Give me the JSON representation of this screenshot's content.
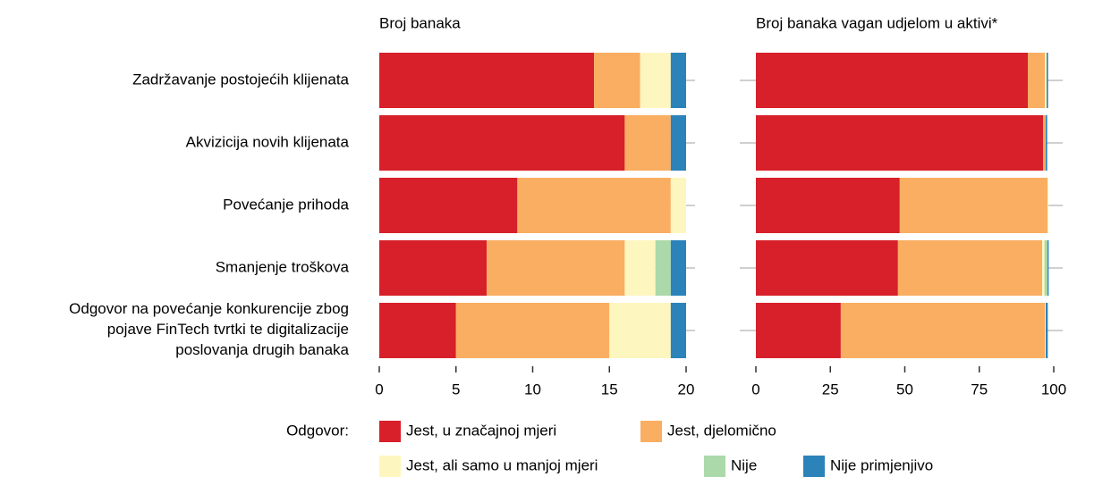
{
  "chart_data": [
    {
      "type": "bar",
      "orientation": "horizontal",
      "stacked": true,
      "title": "Broj banaka",
      "categories": [
        "Zadržavanje postojećih klijenata",
        "Akvizicija novih klijenata",
        "Povećanje prihoda",
        "Smanjenje troškova",
        "Odgovor na povećanje konkurencije zbog\npojave FinTech tvrtki te digitalizacije\nposlovanja drugih banaka"
      ],
      "legend_title": "Odgovor:",
      "series": [
        {
          "name": "Jest, u značajnoj mjeri",
          "color": "#d7202a",
          "values": [
            14,
            16,
            9,
            7,
            5
          ]
        },
        {
          "name": "Jest, djelomično",
          "color": "#f9ae61",
          "values": [
            3,
            3,
            10,
            9,
            10
          ]
        },
        {
          "name": "Jest, ali samo u manjoj mjeri",
          "color": "#fef6bf",
          "values": [
            2,
            0,
            1,
            2,
            4
          ]
        },
        {
          "name": "Nije",
          "color": "#abd9a9",
          "values": [
            0,
            0,
            0,
            1,
            0
          ]
        },
        {
          "name": "Nije primjenjivo",
          "color": "#2b83ba",
          "values": [
            1,
            1,
            0,
            1,
            1
          ]
        }
      ],
      "xlim": [
        0,
        20
      ],
      "xticks": [
        0,
        5,
        10,
        15,
        20
      ]
    },
    {
      "type": "bar",
      "orientation": "horizontal",
      "stacked": true,
      "title": "Broj banaka vagan udjelom u aktivi*",
      "series": [
        {
          "color": "#d7202a",
          "values": [
            91.3,
            96.4,
            48.3,
            47.7,
            28.5
          ]
        },
        {
          "color": "#f9ae61",
          "values": [
            5.7,
            0.9,
            49.6,
            48.4,
            68.5
          ]
        },
        {
          "color": "#fef6bf",
          "values": [
            0.6,
            0,
            0.3,
            0.8,
            0.3
          ]
        },
        {
          "color": "#abd9a9",
          "values": [
            0,
            0,
            0,
            1,
            0
          ]
        },
        {
          "color": "#2b83ba",
          "values": [
            0.5,
            0.5,
            0,
            0.4,
            0.7
          ]
        }
      ],
      "xlim": [
        0,
        100
      ],
      "xticks": [
        0,
        25,
        50,
        75,
        100
      ]
    }
  ]
}
